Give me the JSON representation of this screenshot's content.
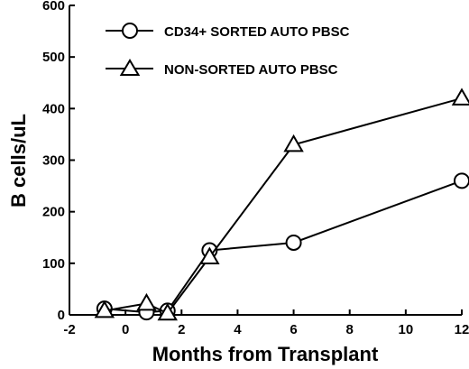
{
  "chart_data": {
    "type": "line",
    "title": "",
    "xlabel": "Months from Transplant",
    "ylabel": "B cells/uL",
    "xlim": [
      -2,
      12
    ],
    "ylim": [
      0,
      600
    ],
    "xticks": [
      -2,
      0,
      2,
      4,
      6,
      8,
      10,
      12
    ],
    "yticks": [
      0,
      100,
      200,
      300,
      400,
      500,
      600
    ],
    "grid": false,
    "legend_position": "top-left",
    "series": [
      {
        "name": "CD34+ SORTED AUTO PBSC",
        "marker": "circle",
        "x": [
          -0.75,
          0.75,
          1.5,
          3,
          6,
          12
        ],
        "y": [
          12,
          5,
          8,
          125,
          140,
          260
        ]
      },
      {
        "name": "NON-SORTED AUTO PBSC",
        "marker": "triangle",
        "x": [
          -0.75,
          0.75,
          1.5,
          3,
          6,
          12
        ],
        "y": [
          8,
          22,
          3,
          112,
          330,
          420
        ]
      }
    ]
  }
}
